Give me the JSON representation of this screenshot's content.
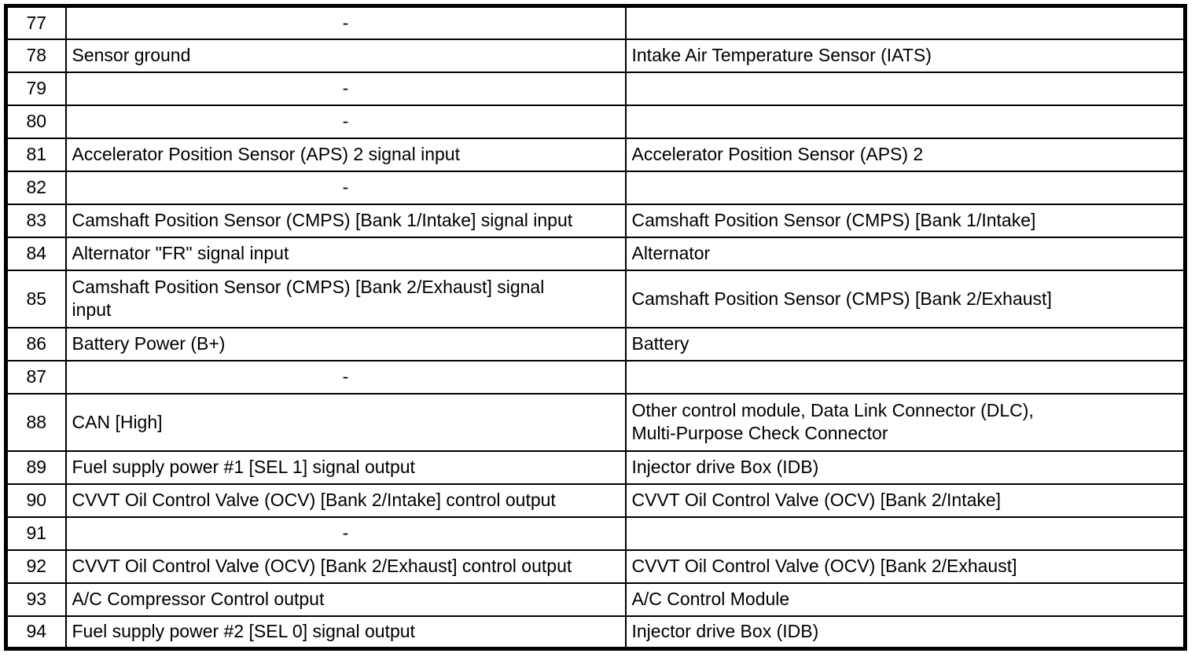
{
  "table": {
    "name": "ecm-connector-pinout-table",
    "columns": [
      "pin",
      "description",
      "connected_to"
    ],
    "rows": [
      {
        "pin": "77",
        "description": "-",
        "connected_to": ""
      },
      {
        "pin": "78",
        "description": "Sensor ground",
        "connected_to": "Intake Air Temperature Sensor (IATS)"
      },
      {
        "pin": "79",
        "description": "-",
        "connected_to": ""
      },
      {
        "pin": "80",
        "description": "-",
        "connected_to": ""
      },
      {
        "pin": "81",
        "description": "Accelerator Position Sensor (APS) 2 signal input",
        "connected_to": "Accelerator Position Sensor (APS) 2"
      },
      {
        "pin": "82",
        "description": "-",
        "connected_to": ""
      },
      {
        "pin": "83",
        "description": "Camshaft Position Sensor (CMPS) [Bank 1/Intake] signal input",
        "connected_to": "Camshaft Position Sensor (CMPS) [Bank 1/Intake]"
      },
      {
        "pin": "84",
        "description": "Alternator \"FR\" signal input",
        "connected_to": "Alternator"
      },
      {
        "pin": "85",
        "description": "Camshaft Position Sensor (CMPS) [Bank 2/Exhaust] signal\ninput",
        "connected_to": "Camshaft Position Sensor (CMPS) [Bank 2/Exhaust]"
      },
      {
        "pin": "86",
        "description": "Battery Power (B+)",
        "connected_to": "Battery"
      },
      {
        "pin": "87",
        "description": "-",
        "connected_to": ""
      },
      {
        "pin": "88",
        "description": "CAN [High]",
        "connected_to": "Other control module, Data Link Connector (DLC),\nMulti-Purpose Check Connector"
      },
      {
        "pin": "89",
        "description": "Fuel supply power #1 [SEL 1] signal output",
        "connected_to": "Injector drive Box (IDB)"
      },
      {
        "pin": "90",
        "description": "CVVT Oil Control Valve (OCV) [Bank 2/Intake] control output",
        "connected_to": "CVVT Oil Control Valve (OCV) [Bank 2/Intake]"
      },
      {
        "pin": "91",
        "description": "-",
        "connected_to": ""
      },
      {
        "pin": "92",
        "description": "CVVT Oil Control Valve (OCV) [Bank 2/Exhaust] control output",
        "connected_to": "CVVT Oil Control Valve (OCV) [Bank 2/Exhaust]"
      },
      {
        "pin": "93",
        "description": "A/C Compressor Control output",
        "connected_to": "A/C Control Module"
      },
      {
        "pin": "94",
        "description": "Fuel supply power #2 [SEL 0] signal output",
        "connected_to": "Injector drive Box (IDB)"
      }
    ]
  },
  "colors": {
    "border": "#000000",
    "background": "#ffffff",
    "text": "#000000"
  }
}
